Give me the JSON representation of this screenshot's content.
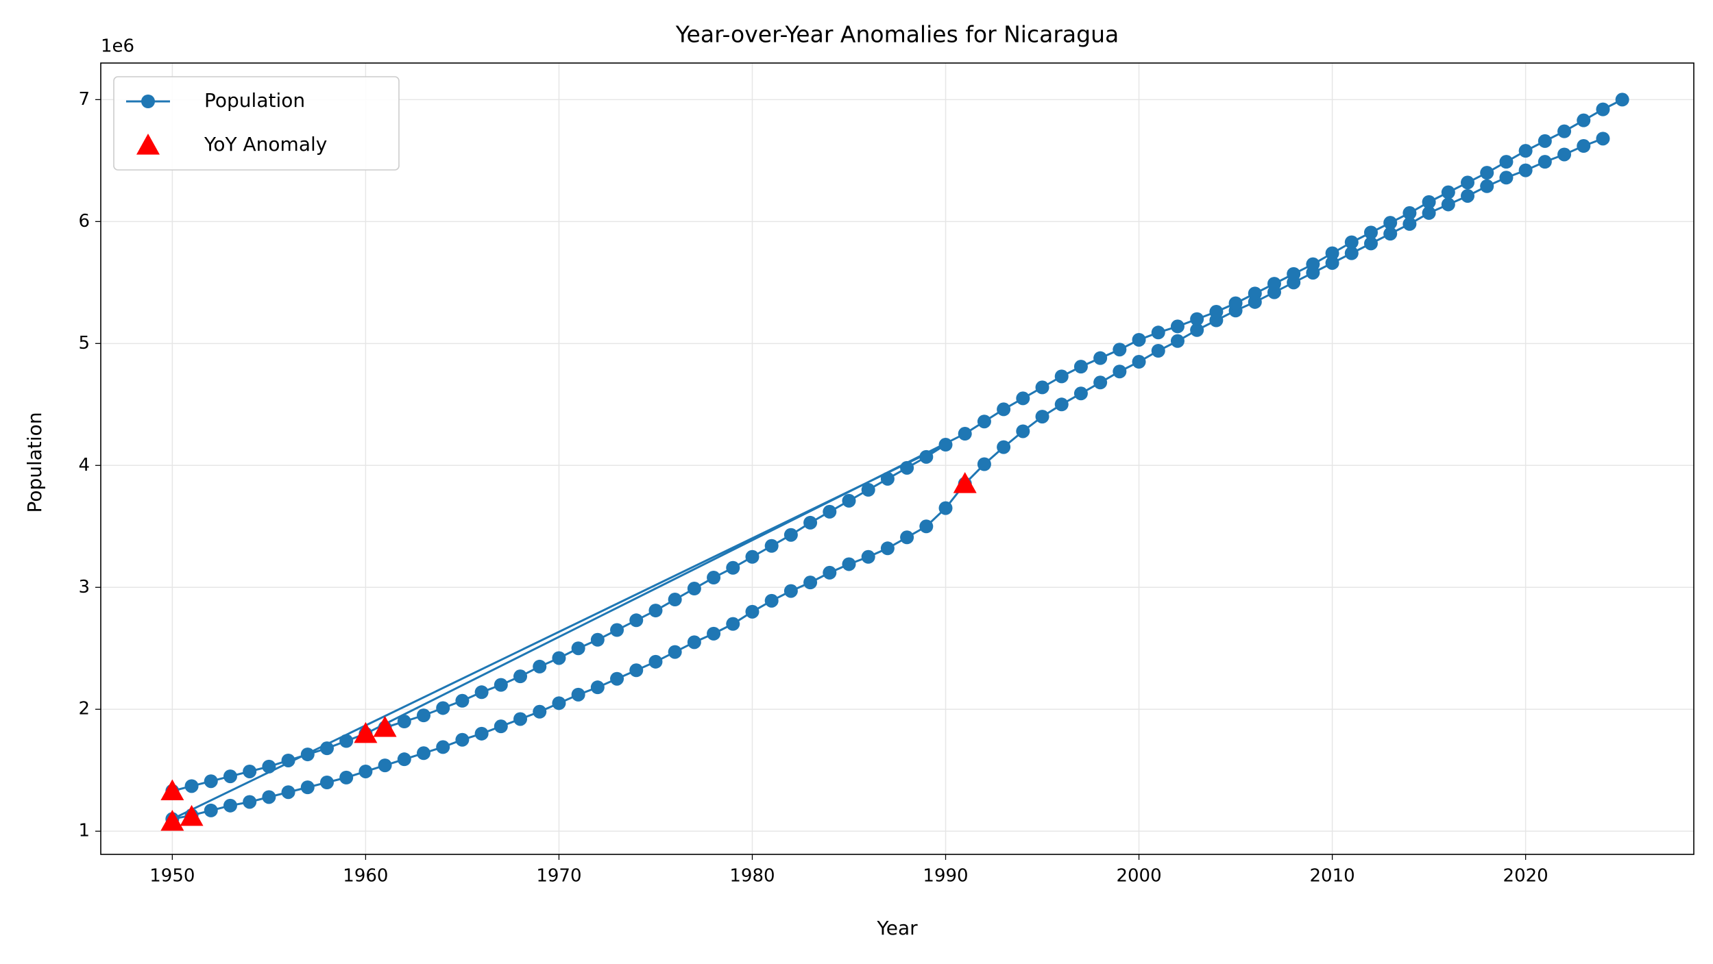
{
  "chart_data": {
    "type": "line",
    "title": "Year-over-Year Anomalies for Nicaragua",
    "xlabel": "Year",
    "ylabel": "Population",
    "y_offset_label": "1e6",
    "xlim": [
      1946.3,
      2028.7
    ],
    "ylim": [
      0.81,
      7.3
    ],
    "xticks": [
      1950,
      1960,
      1970,
      1980,
      1990,
      2000,
      2010,
      2020
    ],
    "yticks": [
      1,
      2,
      3,
      4,
      5,
      6,
      7
    ],
    "grid": true,
    "legend": "upper left",
    "series": [
      {
        "name": "Population",
        "type": "line",
        "color": "#1f77b4",
        "x": [
          1961,
          1962,
          1963,
          1964,
          1965,
          1966,
          1967,
          1968,
          1969,
          1970,
          1971,
          1972,
          1973,
          1974,
          1975,
          1976,
          1977,
          1978,
          1979,
          1980,
          1981,
          1982,
          1983,
          1984,
          1985,
          1986,
          1987,
          1988,
          1989,
          1990,
          1950,
          1951,
          1952,
          1953,
          1954,
          1955,
          1956,
          1957,
          1958,
          1959,
          1960,
          1961,
          1962,
          1963,
          1964,
          1965,
          1966,
          1967,
          1968,
          1969,
          1970,
          1971,
          1972,
          1973,
          1974,
          1975,
          1976,
          1977,
          1978,
          1979,
          1980,
          1981,
          1982,
          1983,
          1984,
          1985,
          1986,
          1987,
          1988,
          1989,
          1990,
          1991,
          1992,
          1993,
          1994,
          1995,
          1996,
          1997,
          1998,
          1999,
          2000,
          2001,
          2002,
          2003,
          2004,
          2005,
          2006,
          2007,
          2008,
          2009,
          2010,
          2011,
          2012,
          2013,
          2014,
          2015,
          2016,
          2017,
          2018,
          2019,
          2020,
          2021,
          2022,
          2023,
          2024,
          null,
          1950,
          1951,
          1952,
          1953,
          1954,
          1955,
          1956,
          1957,
          1958,
          1959,
          1960,
          1991,
          1992,
          1993,
          1994,
          1995,
          1996,
          1997,
          1998,
          1999,
          2000,
          2001,
          2002,
          2003,
          2004,
          2005,
          2006,
          2007,
          2008,
          2009,
          2010,
          2011,
          2012,
          2013,
          2014,
          2015,
          2016,
          2017,
          2018,
          2019,
          2020,
          2021,
          2022,
          2023,
          2024,
          2025
        ],
        "values": [
          1.85,
          1.9,
          1.95,
          2.01,
          2.07,
          2.14,
          2.2,
          2.27,
          2.35,
          2.42,
          2.5,
          2.57,
          2.65,
          2.73,
          2.81,
          2.9,
          2.99,
          3.08,
          3.16,
          3.25,
          3.34,
          3.43,
          3.53,
          3.62,
          3.71,
          3.8,
          3.89,
          3.98,
          4.07,
          4.17,
          1.1,
          1.13,
          1.17,
          1.21,
          1.24,
          1.28,
          1.32,
          1.36,
          1.4,
          1.44,
          1.49,
          1.54,
          1.59,
          1.64,
          1.69,
          1.75,
          1.8,
          1.86,
          1.92,
          1.98,
          2.05,
          2.12,
          2.18,
          2.25,
          2.32,
          2.39,
          2.47,
          2.55,
          2.62,
          2.7,
          2.8,
          2.89,
          2.97,
          3.04,
          3.12,
          3.19,
          3.25,
          3.32,
          3.41,
          3.5,
          3.65,
          3.85,
          4.01,
          4.15,
          4.28,
          4.4,
          4.5,
          4.59,
          4.68,
          4.77,
          4.85,
          4.94,
          5.02,
          5.11,
          5.19,
          5.27,
          5.34,
          5.42,
          5.5,
          5.58,
          5.66,
          5.74,
          5.82,
          5.9,
          5.98,
          6.07,
          6.14,
          6.21,
          6.29,
          6.36,
          6.42,
          6.49,
          6.55,
          6.62,
          6.68,
          null,
          1.33,
          1.37,
          1.41,
          1.45,
          1.49,
          1.53,
          1.58,
          1.63,
          1.68,
          1.74,
          1.8,
          4.26,
          4.36,
          4.46,
          4.55,
          4.64,
          4.73,
          4.81,
          4.88,
          4.95,
          5.03,
          5.09,
          5.14,
          5.2,
          5.26,
          5.33,
          5.41,
          5.49,
          5.57,
          5.65,
          5.74,
          5.83,
          5.91,
          5.99,
          6.07,
          6.16,
          6.24,
          6.32,
          6.4,
          6.49,
          6.58,
          6.66,
          6.74,
          6.83,
          6.92,
          7.0
        ]
      },
      {
        "name": "YoY Anomaly",
        "type": "scatter",
        "color": "#ff0000",
        "x": [
          1950,
          1950,
          1951,
          1960,
          1961,
          1991
        ],
        "values": [
          1.33,
          1.08,
          1.12,
          1.8,
          1.85,
          3.85
        ]
      }
    ]
  }
}
